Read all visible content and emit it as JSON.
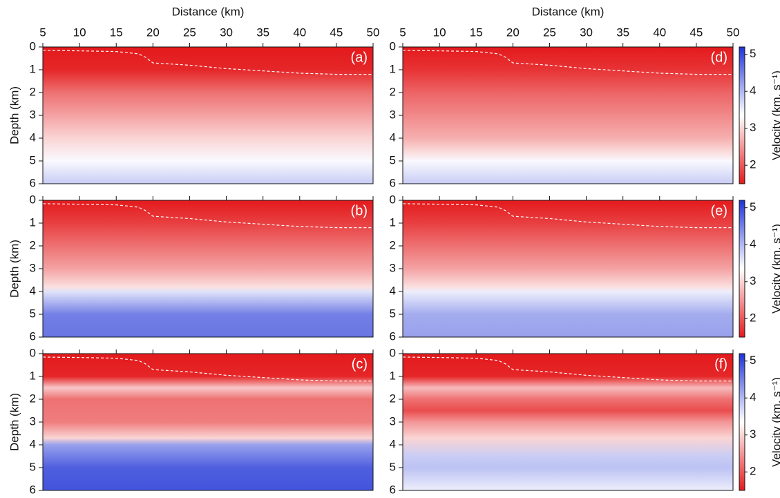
{
  "chart_data": [
    {
      "type": "heatmap",
      "label": "(a)",
      "xlabel": "Distance (km)",
      "xticklabels": true,
      "ylabel": "Depth (km)",
      "xlim": [
        5,
        50
      ],
      "xticks": [
        5,
        10,
        15,
        20,
        25,
        30,
        35,
        40,
        45,
        50
      ],
      "ylim": [
        0,
        6
      ],
      "yticks": [
        0,
        1,
        2,
        3,
        4,
        5,
        6
      ],
      "depth": [
        0,
        1,
        2,
        3,
        4,
        5,
        6
      ],
      "values": [
        1.5,
        1.6,
        2.2,
        2.6,
        3.0,
        3.4,
        3.8
      ],
      "seafloor": {
        "x": [
          5,
          10,
          15,
          18,
          19,
          20,
          25,
          30,
          35,
          40,
          45,
          50
        ],
        "y": [
          0.15,
          0.17,
          0.2,
          0.3,
          0.45,
          0.7,
          0.8,
          0.95,
          1.05,
          1.15,
          1.2,
          1.2
        ]
      },
      "clim": [
        1.5,
        5.2
      ],
      "colormap": [
        "#e41a1c",
        "#ffffff",
        "#1f33d6"
      ]
    },
    {
      "type": "heatmap",
      "label": "(d)",
      "xlabel": "Distance (km)",
      "xticklabels": true,
      "xlim": [
        5,
        50
      ],
      "xticks": [
        5,
        10,
        15,
        20,
        25,
        30,
        35,
        40,
        45,
        50
      ],
      "ylim": [
        0,
        6
      ],
      "yticks": [
        0,
        1,
        2,
        3,
        4,
        5,
        6
      ],
      "depth": [
        0,
        1,
        2,
        3,
        4,
        4.5,
        5,
        6
      ],
      "values": [
        1.5,
        1.7,
        2.1,
        2.4,
        2.7,
        3.0,
        3.4,
        3.8
      ],
      "seafloor": {
        "x": [
          5,
          10,
          15,
          18,
          19,
          20,
          25,
          30,
          35,
          40,
          45,
          50
        ],
        "y": [
          0.15,
          0.17,
          0.2,
          0.3,
          0.45,
          0.7,
          0.8,
          0.95,
          1.05,
          1.15,
          1.2,
          1.2
        ]
      },
      "clim": [
        1.5,
        5.2
      ],
      "colormap": [
        "#e41a1c",
        "#ffffff",
        "#1f33d6"
      ],
      "colorbar": {
        "label": "Velocity (km. s⁻¹)",
        "ticks": [
          2,
          3,
          4,
          5
        ]
      }
    },
    {
      "type": "heatmap",
      "label": "(b)",
      "xticklabels": false,
      "ylabel": "Depth (km)",
      "xlim": [
        5,
        50
      ],
      "xticks": [
        5,
        10,
        15,
        20,
        25,
        30,
        35,
        40,
        45,
        50
      ],
      "ylim": [
        0,
        6
      ],
      "yticks": [
        0,
        1,
        2,
        3,
        4,
        5,
        6
      ],
      "depth": [
        0,
        1,
        2,
        3,
        3.8,
        4,
        5,
        6
      ],
      "values": [
        1.5,
        1.8,
        2.2,
        2.6,
        3.1,
        3.6,
        4.5,
        4.6
      ],
      "seafloor": {
        "x": [
          5,
          10,
          15,
          18,
          19,
          20,
          25,
          30,
          35,
          40,
          45,
          50
        ],
        "y": [
          0.15,
          0.17,
          0.2,
          0.3,
          0.45,
          0.7,
          0.8,
          0.95,
          1.05,
          1.15,
          1.2,
          1.2
        ]
      },
      "clim": [
        1.5,
        5.2
      ],
      "colormap": [
        "#e41a1c",
        "#ffffff",
        "#1f33d6"
      ]
    },
    {
      "type": "heatmap",
      "label": "(e)",
      "xticklabels": false,
      "xlim": [
        5,
        50
      ],
      "xticks": [
        5,
        10,
        15,
        20,
        25,
        30,
        35,
        40,
        45,
        50
      ],
      "ylim": [
        0,
        6
      ],
      "yticks": [
        0,
        1,
        2,
        3,
        4,
        5,
        6
      ],
      "depth": [
        0,
        1,
        2,
        3,
        3.8,
        4,
        5,
        6
      ],
      "values": [
        1.5,
        1.8,
        2.2,
        2.6,
        3.1,
        3.5,
        4.1,
        4.2
      ],
      "seafloor": {
        "x": [
          5,
          10,
          15,
          18,
          19,
          20,
          25,
          30,
          35,
          40,
          45,
          50
        ],
        "y": [
          0.15,
          0.17,
          0.2,
          0.3,
          0.45,
          0.7,
          0.8,
          0.95,
          1.05,
          1.15,
          1.2,
          1.2
        ]
      },
      "clim": [
        1.5,
        5.2
      ],
      "colormap": [
        "#e41a1c",
        "#ffffff",
        "#1f33d6"
      ],
      "colorbar": {
        "label": "Velocity (km. s⁻¹)",
        "ticks": [
          2,
          3,
          4,
          5
        ]
      }
    },
    {
      "type": "heatmap",
      "label": "(c)",
      "xticklabels": false,
      "ylabel": "Depth (km)",
      "xlim": [
        5,
        50
      ],
      "xticks": [
        5,
        10,
        15,
        20,
        25,
        30,
        35,
        40,
        45,
        50
      ],
      "ylim": [
        0,
        6
      ],
      "yticks": [
        0,
        1,
        2,
        3,
        4,
        5,
        6
      ],
      "depth": [
        0,
        1,
        1.5,
        2,
        3,
        3.7,
        4,
        5,
        6
      ],
      "values": [
        1.5,
        1.6,
        2.9,
        2.2,
        2.3,
        3.0,
        4.2,
        4.8,
        4.9
      ],
      "seafloor": {
        "x": [
          5,
          10,
          15,
          18,
          19,
          20,
          25,
          30,
          35,
          40,
          45,
          50
        ],
        "y": [
          0.15,
          0.17,
          0.2,
          0.3,
          0.45,
          0.7,
          0.8,
          0.95,
          1.05,
          1.15,
          1.2,
          1.2
        ]
      },
      "clim": [
        1.5,
        5.2
      ],
      "colormap": [
        "#e41a1c",
        "#ffffff",
        "#1f33d6"
      ]
    },
    {
      "type": "heatmap",
      "label": "(f)",
      "xticklabels": false,
      "xlim": [
        5,
        50
      ],
      "xticks": [
        5,
        10,
        15,
        20,
        25,
        30,
        35,
        40,
        45,
        50
      ],
      "ylim": [
        0,
        6
      ],
      "yticks": [
        0,
        1,
        2,
        3,
        4,
        5,
        6
      ],
      "depth": [
        0,
        1,
        1.5,
        2,
        2.5,
        3,
        3.7,
        4.5,
        5,
        6
      ],
      "values": [
        1.5,
        1.6,
        2.8,
        2.2,
        1.9,
        2.5,
        3.0,
        3.8,
        3.9,
        3.5
      ],
      "seafloor": {
        "x": [
          5,
          10,
          15,
          18,
          19,
          20,
          25,
          30,
          35,
          40,
          45,
          50
        ],
        "y": [
          0.15,
          0.17,
          0.2,
          0.3,
          0.45,
          0.7,
          0.8,
          0.95,
          1.05,
          1.15,
          1.2,
          1.2
        ]
      },
      "clim": [
        1.5,
        5.2
      ],
      "colormap": [
        "#e41a1c",
        "#ffffff",
        "#1f33d6"
      ],
      "colorbar": {
        "label": "Velocity (km. s⁻¹)",
        "ticks": [
          2,
          3,
          4,
          5
        ]
      }
    }
  ]
}
